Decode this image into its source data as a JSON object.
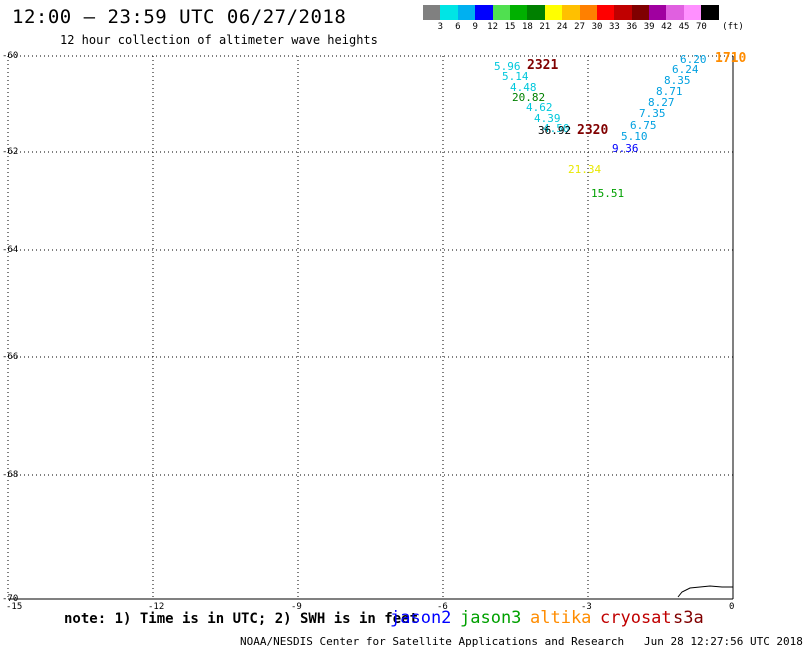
{
  "header": {
    "title": "12:00 – 23:59 UTC 06/27/2018",
    "subtitle": "12 hour collection of altimeter wave heights"
  },
  "scale": {
    "colors": [
      "#808080",
      "#00e5e5",
      "#00b0f0",
      "#0000ff",
      "#50e050",
      "#00b000",
      "#008000",
      "#ffff00",
      "#ffc000",
      "#ff8000",
      "#ff0000",
      "#c00000",
      "#800000",
      "#a000a0",
      "#e060e0",
      "#ff90ff",
      "#000000"
    ],
    "labels": [
      "3",
      "6",
      "9",
      "12",
      "15",
      "18",
      "21",
      "24",
      "27",
      "30",
      "33",
      "36",
      "39",
      "42",
      "45",
      "70"
    ],
    "unit": "(ft)"
  },
  "axes": {
    "lat_labels": [
      "-60",
      "-62",
      "-64",
      "-66",
      "-68",
      "-70"
    ],
    "lon_labels": [
      "-15",
      "-12",
      "-9",
      "-6",
      "-3",
      "0"
    ]
  },
  "observations": [
    {
      "text": "5.96",
      "color": "#00c8dc"
    },
    {
      "text": "5.14",
      "color": "#00c8dc"
    },
    {
      "text": "4.48",
      "color": "#00c8dc"
    },
    {
      "text": "20.82",
      "color": "#008000"
    },
    {
      "text": "4.62",
      "color": "#00c8dc"
    },
    {
      "text": "4.39",
      "color": "#00c8dc"
    },
    {
      "text": "4.50",
      "color": "#00c8dc"
    },
    {
      "text": "36.92",
      "color": "#000000"
    },
    {
      "text": "21.34",
      "color": "#e8e800"
    },
    {
      "text": "15.51",
      "color": "#00a000"
    },
    {
      "text": "6.20",
      "color": "#00a0e0"
    },
    {
      "text": "6.24",
      "color": "#00a0e0"
    },
    {
      "text": "8.35",
      "color": "#00a0e0"
    },
    {
      "text": "8.71",
      "color": "#00a0e0"
    },
    {
      "text": "8.27",
      "color": "#00a0e0"
    },
    {
      "text": "7.35",
      "color": "#00a0e0"
    },
    {
      "text": "6.75",
      "color": "#00a0e0"
    },
    {
      "text": "5.10",
      "color": "#00a0e0"
    },
    {
      "text": "9.36",
      "color": "#0000ff"
    }
  ],
  "pass_labels": [
    {
      "text": "2321",
      "color": "#800000"
    },
    {
      "text": "2320",
      "color": "#800000"
    },
    {
      "text": "1710",
      "color": "#ff8c00"
    }
  ],
  "note": "note: 1) Time is in UTC; 2) SWH is in feet",
  "legend": [
    {
      "name": "jason2",
      "color": "#0000ff"
    },
    {
      "name": "jason3",
      "color": "#00a000"
    },
    {
      "name": "altika",
      "color": "#ff8c00"
    },
    {
      "name": "cryosat",
      "color": "#c00000"
    },
    {
      "name": "s3a",
      "color": "#800000"
    }
  ],
  "footer": {
    "credit": "NOAA/NESDIS Center for Satellite Applications and Research",
    "timestamp": "Jun 28 12:27:56 UTC 2018"
  }
}
